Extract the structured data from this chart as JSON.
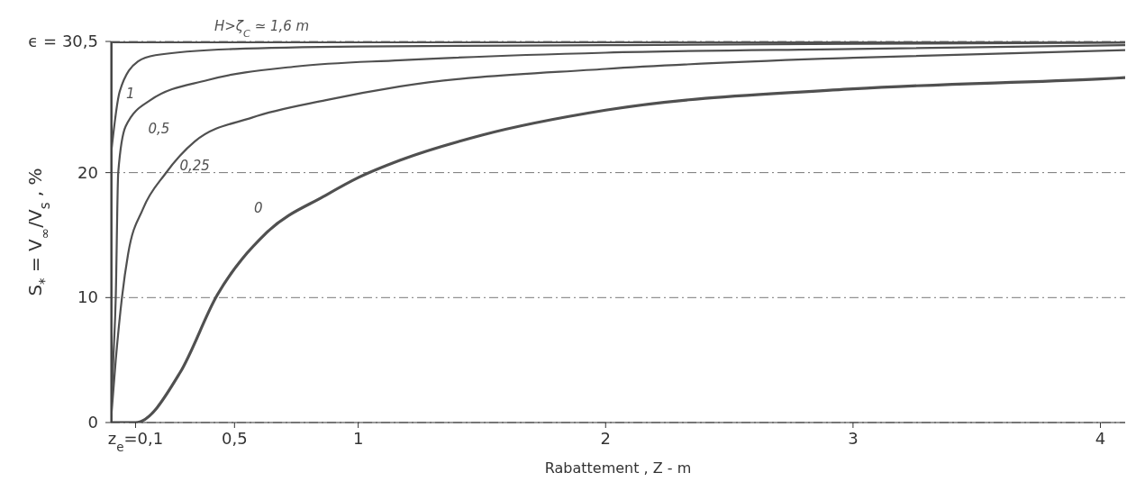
{
  "chart_data": {
    "type": "line",
    "xlabel": "Rabattement , Z - m",
    "ylabel": "S$_{*}$ = V$_{∞}$/V$_{s}$ , %",
    "xlim": [
      0,
      4.1
    ],
    "xticks": [
      {
        "value": 0.1,
        "label": "z$_{e}$=0,1"
      },
      {
        "value": 0.5,
        "label": "0,5"
      },
      1,
      2,
      3,
      4
    ],
    "ylim": [
      0,
      30.5
    ],
    "yticks": [
      0,
      10,
      20,
      {
        "value": 30.5,
        "label": "ϵ = 30,5"
      }
    ],
    "grid": "y",
    "line_style": "solid",
    "marker": "none",
    "legend": false,
    "series": [
      {
        "name": "H>ζ$_{C}$ ≃ 1,6 m",
        "color": "#505050",
        "x": [
          0,
          0,
          4.1
        ],
        "values": [
          0,
          30.5,
          30.5
        ]
      },
      {
        "name": "1",
        "color": "#505050",
        "x": [
          0,
          0.036,
          0.11,
          0.18,
          0.5,
          1,
          2,
          3,
          4.1
        ],
        "values": [
          21.3,
          26.5,
          28.9,
          29.4,
          29.9,
          30.1,
          30.2,
          30.3,
          30.4
        ]
      },
      {
        "name": "0,5",
        "color": "#505050",
        "x": [
          0,
          0.01,
          0.02,
          0.03,
          0.06,
          0.16,
          0.39,
          0.75,
          1.17,
          2,
          3,
          4.1
        ],
        "values": [
          0,
          5,
          10,
          20,
          23.7,
          25.8,
          27.4,
          28.5,
          29,
          29.6,
          29.9,
          30.2
        ]
      },
      {
        "name": "0,25",
        "color": "#505050",
        "x": [
          0,
          0.02,
          0.045,
          0.07,
          0.13,
          0.22,
          0.34,
          0.57,
          0.87,
          1.17,
          2,
          3,
          4.1
        ],
        "values": [
          0,
          5,
          10,
          13.5,
          17.1,
          19.9,
          22.5,
          24.4,
          25.8,
          26.9,
          28.3,
          29.2,
          29.8
        ]
      },
      {
        "name": "0",
        "color": "#505050",
        "x": [
          0,
          0.1,
          0.28,
          0.43,
          0.63,
          0.87,
          1,
          1.17,
          1.5,
          2,
          3,
          4,
          4.1
        ],
        "values": [
          0,
          0,
          4,
          10.2,
          15.2,
          18.2,
          19.6,
          21,
          23,
          25,
          26.7,
          27.5,
          27.6
        ]
      }
    ]
  }
}
